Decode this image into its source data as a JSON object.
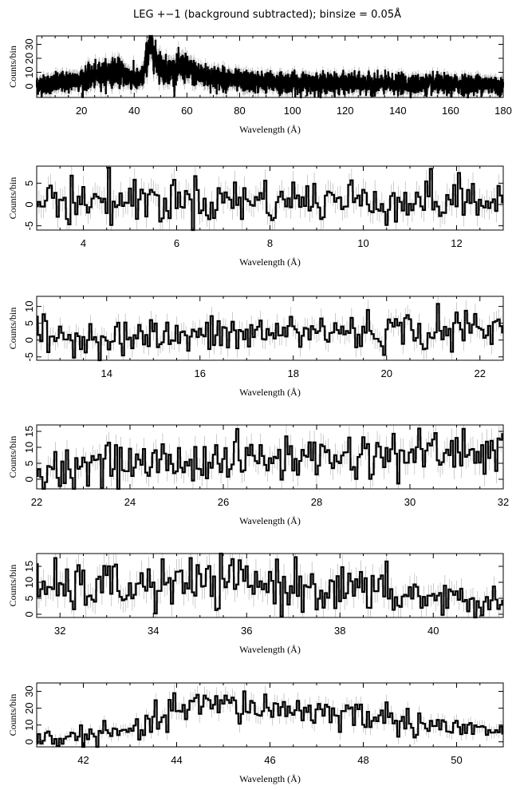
{
  "title": "LEG +−1 (background subtracted); binsize = 0.05Å",
  "colors": {
    "line": "#000000",
    "error_bars": "#9a9a9a",
    "background": "#ffffff"
  },
  "chart_data": [
    {
      "type": "line",
      "style": "step-with-error-bars",
      "xlabel": "Wavelength (Å)",
      "ylabel": "Counts/bin",
      "xlim": [
        3,
        180
      ],
      "ylim": [
        -8,
        36
      ],
      "xticks": [
        20,
        40,
        60,
        80,
        100,
        120,
        140,
        160,
        180
      ],
      "yticks": [
        0,
        10,
        20,
        30
      ],
      "profile": [
        [
          3,
          1
        ],
        [
          10,
          2
        ],
        [
          20,
          5
        ],
        [
          28,
          9
        ],
        [
          33,
          11
        ],
        [
          38,
          7
        ],
        [
          42,
          4
        ],
        [
          43.5,
          8
        ],
        [
          45,
          24
        ],
        [
          46.5,
          30
        ],
        [
          48,
          20
        ],
        [
          51,
          12
        ],
        [
          55,
          11
        ],
        [
          58,
          14
        ],
        [
          60,
          12
        ],
        [
          65,
          8
        ],
        [
          80,
          3.5
        ],
        [
          100,
          2.5
        ],
        [
          120,
          2
        ],
        [
          140,
          1.5
        ],
        [
          160,
          1.2
        ],
        [
          176,
          1.5
        ],
        [
          178,
          0
        ],
        [
          180,
          0
        ]
      ],
      "sigma_floor": 3
    },
    {
      "type": "line",
      "style": "step-with-error-bars",
      "xlabel": "Wavelength (Å)",
      "ylabel": "Counts/bin",
      "xlim": [
        3,
        13
      ],
      "ylim": [
        -6,
        9
      ],
      "xticks": [
        4,
        6,
        8,
        10,
        12
      ],
      "yticks": [
        -5,
        0,
        5
      ],
      "profile": [
        [
          3,
          1
        ],
        [
          13,
          1
        ]
      ],
      "sigma_floor": 2.5
    },
    {
      "type": "line",
      "style": "step-with-error-bars",
      "xlabel": "Wavelength (Å)",
      "ylabel": "Counts/bin",
      "xlim": [
        12.5,
        22.5
      ],
      "ylim": [
        -6,
        13
      ],
      "xticks": [
        14,
        16,
        18,
        20,
        22
      ],
      "yticks": [
        -5,
        0,
        5,
        10
      ],
      "profile": [
        [
          12.5,
          1
        ],
        [
          16,
          1
        ],
        [
          18,
          2.5
        ],
        [
          22.5,
          3
        ]
      ],
      "sigma_floor": 2.5
    },
    {
      "type": "line",
      "style": "step-with-error-bars",
      "xlabel": "Wavelength (Å)",
      "ylabel": "Counts/bin",
      "xlim": [
        22,
        32
      ],
      "ylim": [
        -3,
        17
      ],
      "xticks": [
        22,
        24,
        26,
        28,
        30,
        32
      ],
      "yticks": [
        0,
        5,
        10,
        15
      ],
      "profile": [
        [
          22,
          3
        ],
        [
          24,
          5
        ],
        [
          26,
          6
        ],
        [
          28,
          7
        ],
        [
          30,
          8
        ],
        [
          32,
          9
        ]
      ],
      "sigma_floor": 2.5
    },
    {
      "type": "line",
      "style": "step-with-error-bars",
      "xlabel": "Wavelength (Å)",
      "ylabel": "Counts/bin",
      "xlim": [
        31.5,
        41.5
      ],
      "ylim": [
        -1,
        19
      ],
      "xticks": [
        32,
        34,
        36,
        38,
        40
      ],
      "yticks": [
        0,
        5,
        10,
        15
      ],
      "profile": [
        [
          31.5,
          8
        ],
        [
          34,
          9
        ],
        [
          36,
          10
        ],
        [
          38,
          8
        ],
        [
          40,
          5
        ],
        [
          41.5,
          3
        ]
      ],
      "sigma_floor": 2.5
    },
    {
      "type": "line",
      "style": "step-with-error-bars",
      "xlabel": "Wavelength (Å)",
      "ylabel": "Counts/bin",
      "xlim": [
        41,
        51
      ],
      "ylim": [
        -3,
        35
      ],
      "xticks": [
        42,
        44,
        46,
        48,
        50
      ],
      "yticks": [
        0,
        10,
        20,
        30
      ],
      "profile": [
        [
          41,
          2
        ],
        [
          42,
          3
        ],
        [
          43,
          6
        ],
        [
          43.5,
          10
        ],
        [
          44,
          20
        ],
        [
          45,
          22
        ],
        [
          46,
          20
        ],
        [
          47,
          18
        ],
        [
          48,
          16
        ],
        [
          49,
          12
        ],
        [
          50,
          8
        ],
        [
          51,
          6
        ]
      ],
      "sigma_floor": 2.5
    }
  ]
}
